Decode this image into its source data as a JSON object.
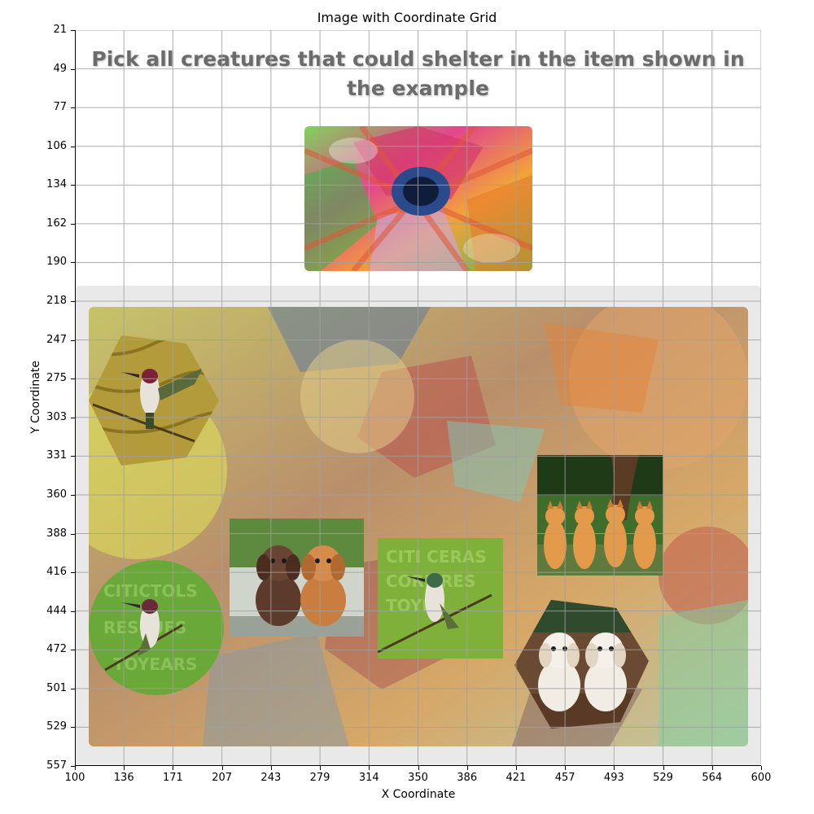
{
  "figure": {
    "title": "Image with Coordinate Grid",
    "xlabel": "X Coordinate",
    "ylabel": "Y Coordinate",
    "x_ticks": [
      "100",
      "136",
      "171",
      "207",
      "243",
      "279",
      "314",
      "350",
      "386",
      "421",
      "457",
      "493",
      "529",
      "564",
      "600"
    ],
    "y_ticks": [
      "21",
      "49",
      "77",
      "106",
      "134",
      "162",
      "190",
      "218",
      "247",
      "275",
      "303",
      "331",
      "360",
      "388",
      "416",
      "444",
      "472",
      "501",
      "529",
      "557"
    ]
  },
  "captcha": {
    "prompt": "Pick all creatures that could shelter in the item shown in the example",
    "example": {
      "name": "birdhouse-example",
      "description": "colorful birdhouse example image"
    },
    "options": [
      {
        "name": "hummingbird-hexagon-tile",
        "subject": "hummingbird",
        "shape": "hexagon"
      },
      {
        "name": "orange-kittens-tile",
        "subject": "four orange kittens",
        "shape": "rectangle"
      },
      {
        "name": "puppies-brown-tile",
        "subject": "two brown puppies",
        "shape": "rectangle"
      },
      {
        "name": "hummingbird-square-tile",
        "subject": "hummingbird",
        "shape": "rectangle"
      },
      {
        "name": "hummingbird-circle-tile",
        "subject": "hummingbird",
        "shape": "circle"
      },
      {
        "name": "white-puppies-tile",
        "subject": "two white puppies",
        "shape": "hexagon"
      }
    ]
  },
  "colors": {
    "prompt_text": "#6b6b6b",
    "panel_bg": "#e9e9e9",
    "grid": "#a0a0a0"
  }
}
